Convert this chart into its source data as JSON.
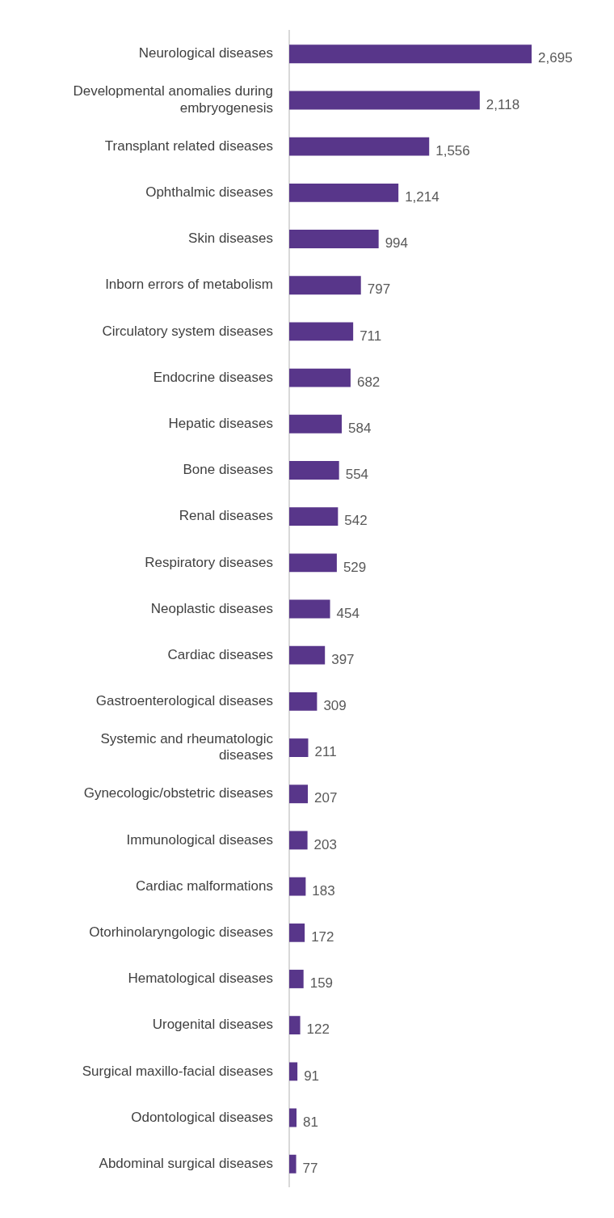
{
  "chart_data": {
    "type": "bar",
    "orientation": "horizontal",
    "value_labels": [
      "2,695",
      "2,118",
      "1,556",
      "1,214",
      "994",
      "797",
      "711",
      "682",
      "584",
      "554",
      "542",
      "529",
      "454",
      "397",
      "309",
      "211",
      "207",
      "203",
      "183",
      "172",
      "159",
      "122",
      "91",
      "81",
      "77"
    ],
    "categories": [
      "Neurological diseases",
      "Developmental anomalies during embryogenesis",
      "Transplant related diseases",
      "Ophthalmic diseases",
      "Skin diseases",
      "Inborn errors of metabolism",
      "Circulatory system diseases",
      "Endocrine diseases",
      "Hepatic diseases",
      "Bone diseases",
      "Renal diseases",
      "Respiratory diseases",
      "Neoplastic diseases",
      "Cardiac diseases",
      "Gastroenterological diseases",
      "Systemic and rheumatologic diseases",
      "Gynecologic/obstetric diseases",
      "Immunological diseases",
      "Cardiac malformations",
      "Otorhinolaryngologic diseases",
      "Hematological diseases",
      "Urogenital diseases",
      "Surgical maxillo-facial diseases",
      "Odontological diseases",
      "Abdominal surgical diseases"
    ],
    "values": [
      2695,
      2118,
      1556,
      1214,
      994,
      797,
      711,
      682,
      584,
      554,
      542,
      529,
      454,
      397,
      309,
      211,
      207,
      203,
      183,
      172,
      159,
      122,
      91,
      81,
      77
    ],
    "color": "#58368a"
  }
}
